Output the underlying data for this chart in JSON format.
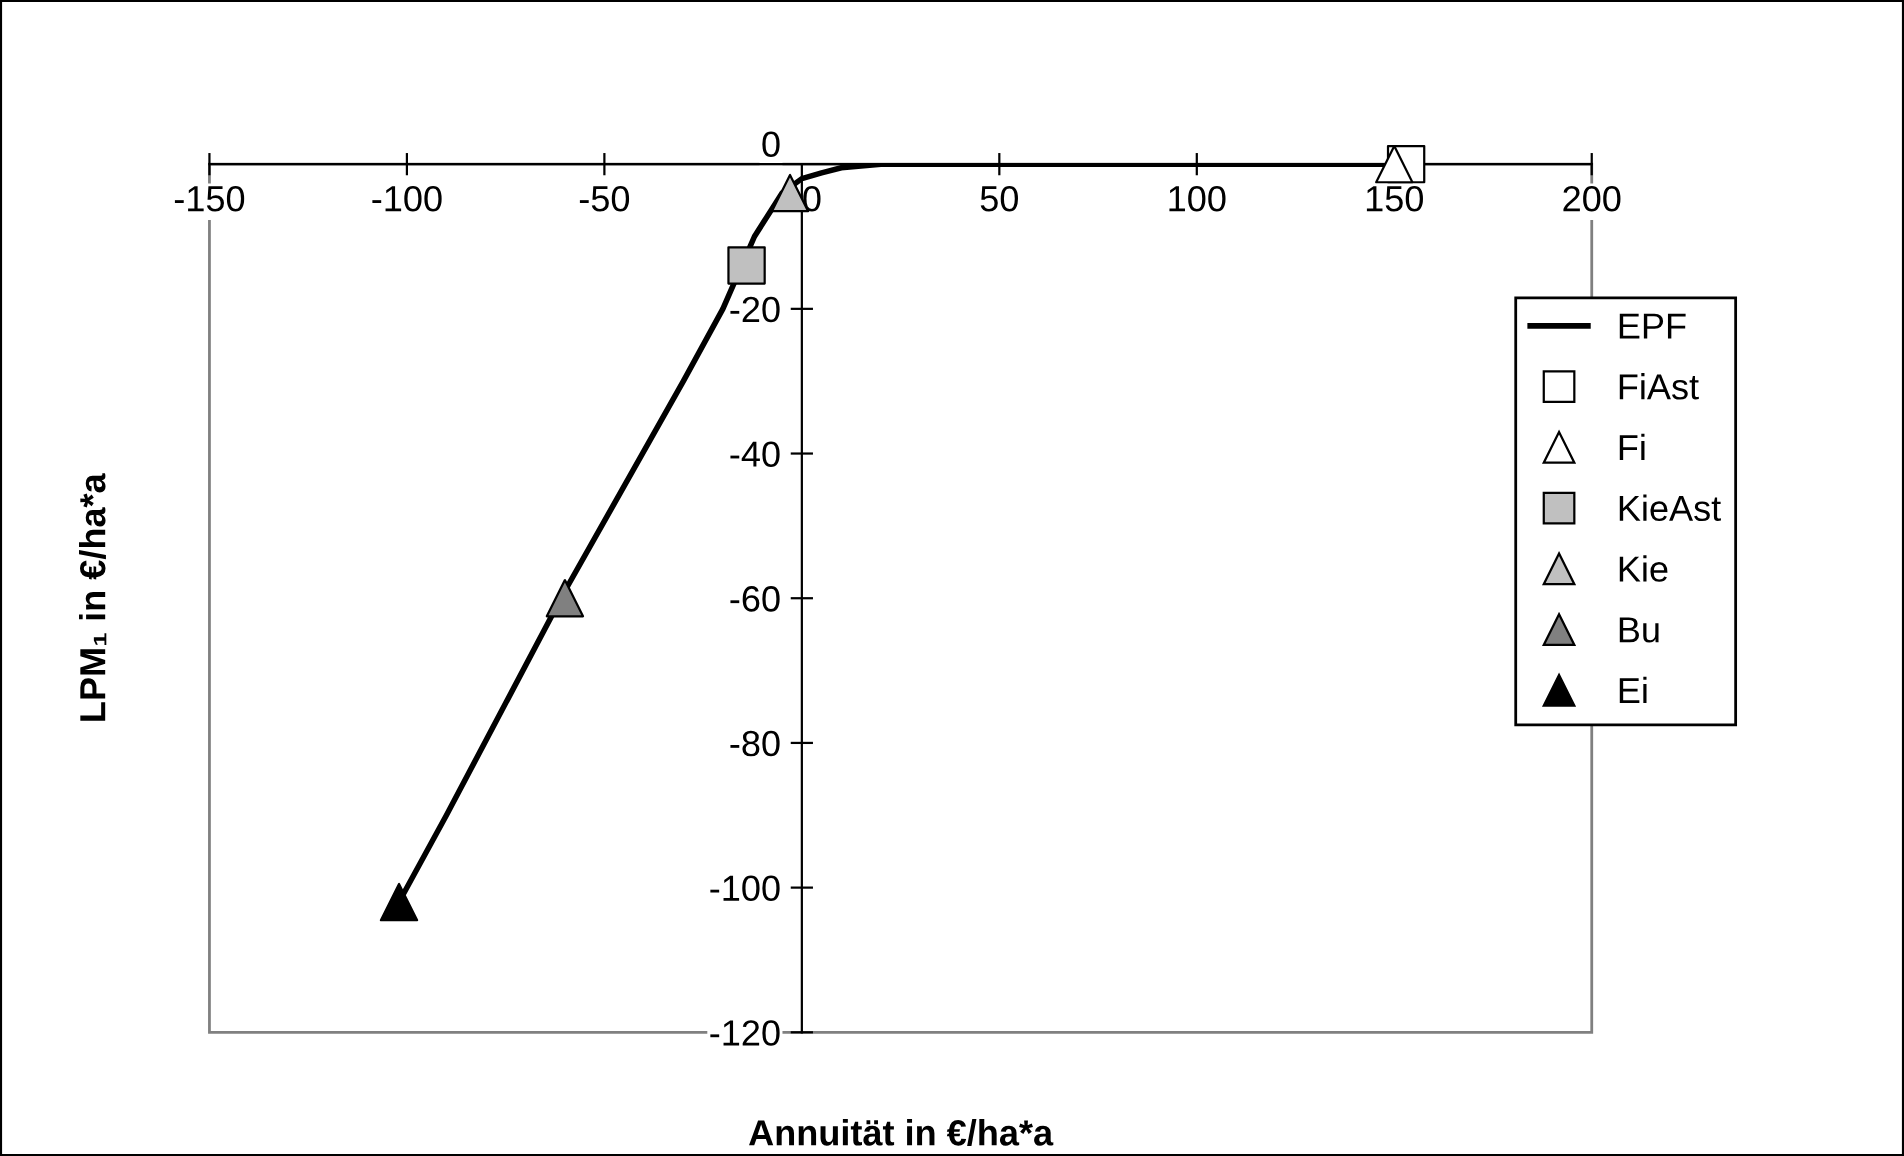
{
  "chart_data": {
    "type": "scatter",
    "xlabel": "Annuität in €/ha*a",
    "ylabel": "LPM₁ in €/ha*a",
    "xlim": [
      -150,
      200
    ],
    "xticks": [
      -150,
      -100,
      -50,
      0,
      50,
      100,
      150,
      200
    ],
    "ylim": [
      -120,
      0
    ],
    "yticks": [
      -120,
      -100,
      -80,
      -60,
      -40,
      -20,
      0
    ],
    "grid": false,
    "legend": "right",
    "series": [
      {
        "name": "EPF",
        "type": "line",
        "color": "#000000",
        "marker": "none",
        "line_style": "solid",
        "x": [
          -102,
          -90,
          -60,
          -30,
          -20,
          -12,
          -5,
          0,
          5,
          10,
          20,
          155
        ],
        "values": [
          -102,
          -90,
          -59,
          -30,
          -20,
          -10,
          -4,
          -2,
          -1.2,
          -0.5,
          0,
          0
        ]
      },
      {
        "name": "FiAst",
        "color": "#ffffff",
        "marker": "square",
        "x": [
          153
        ],
        "values": [
          0
        ]
      },
      {
        "name": "Fi",
        "color": "#ffffff",
        "marker": "triangle",
        "x": [
          150
        ],
        "values": [
          0
        ]
      },
      {
        "name": "KieAst",
        "color": "#c0c0c0",
        "marker": "square",
        "x": [
          -14
        ],
        "values": [
          -14
        ]
      },
      {
        "name": "Kie",
        "color": "#c0c0c0",
        "marker": "triangle",
        "x": [
          -3
        ],
        "values": [
          -4
        ]
      },
      {
        "name": "Bu",
        "color": "#808080",
        "marker": "triangle",
        "x": [
          -60
        ],
        "values": [
          -60
        ]
      },
      {
        "name": "Ei",
        "color": "#000000",
        "marker": "triangle",
        "x": [
          -102
        ],
        "values": [
          -102
        ]
      }
    ]
  }
}
